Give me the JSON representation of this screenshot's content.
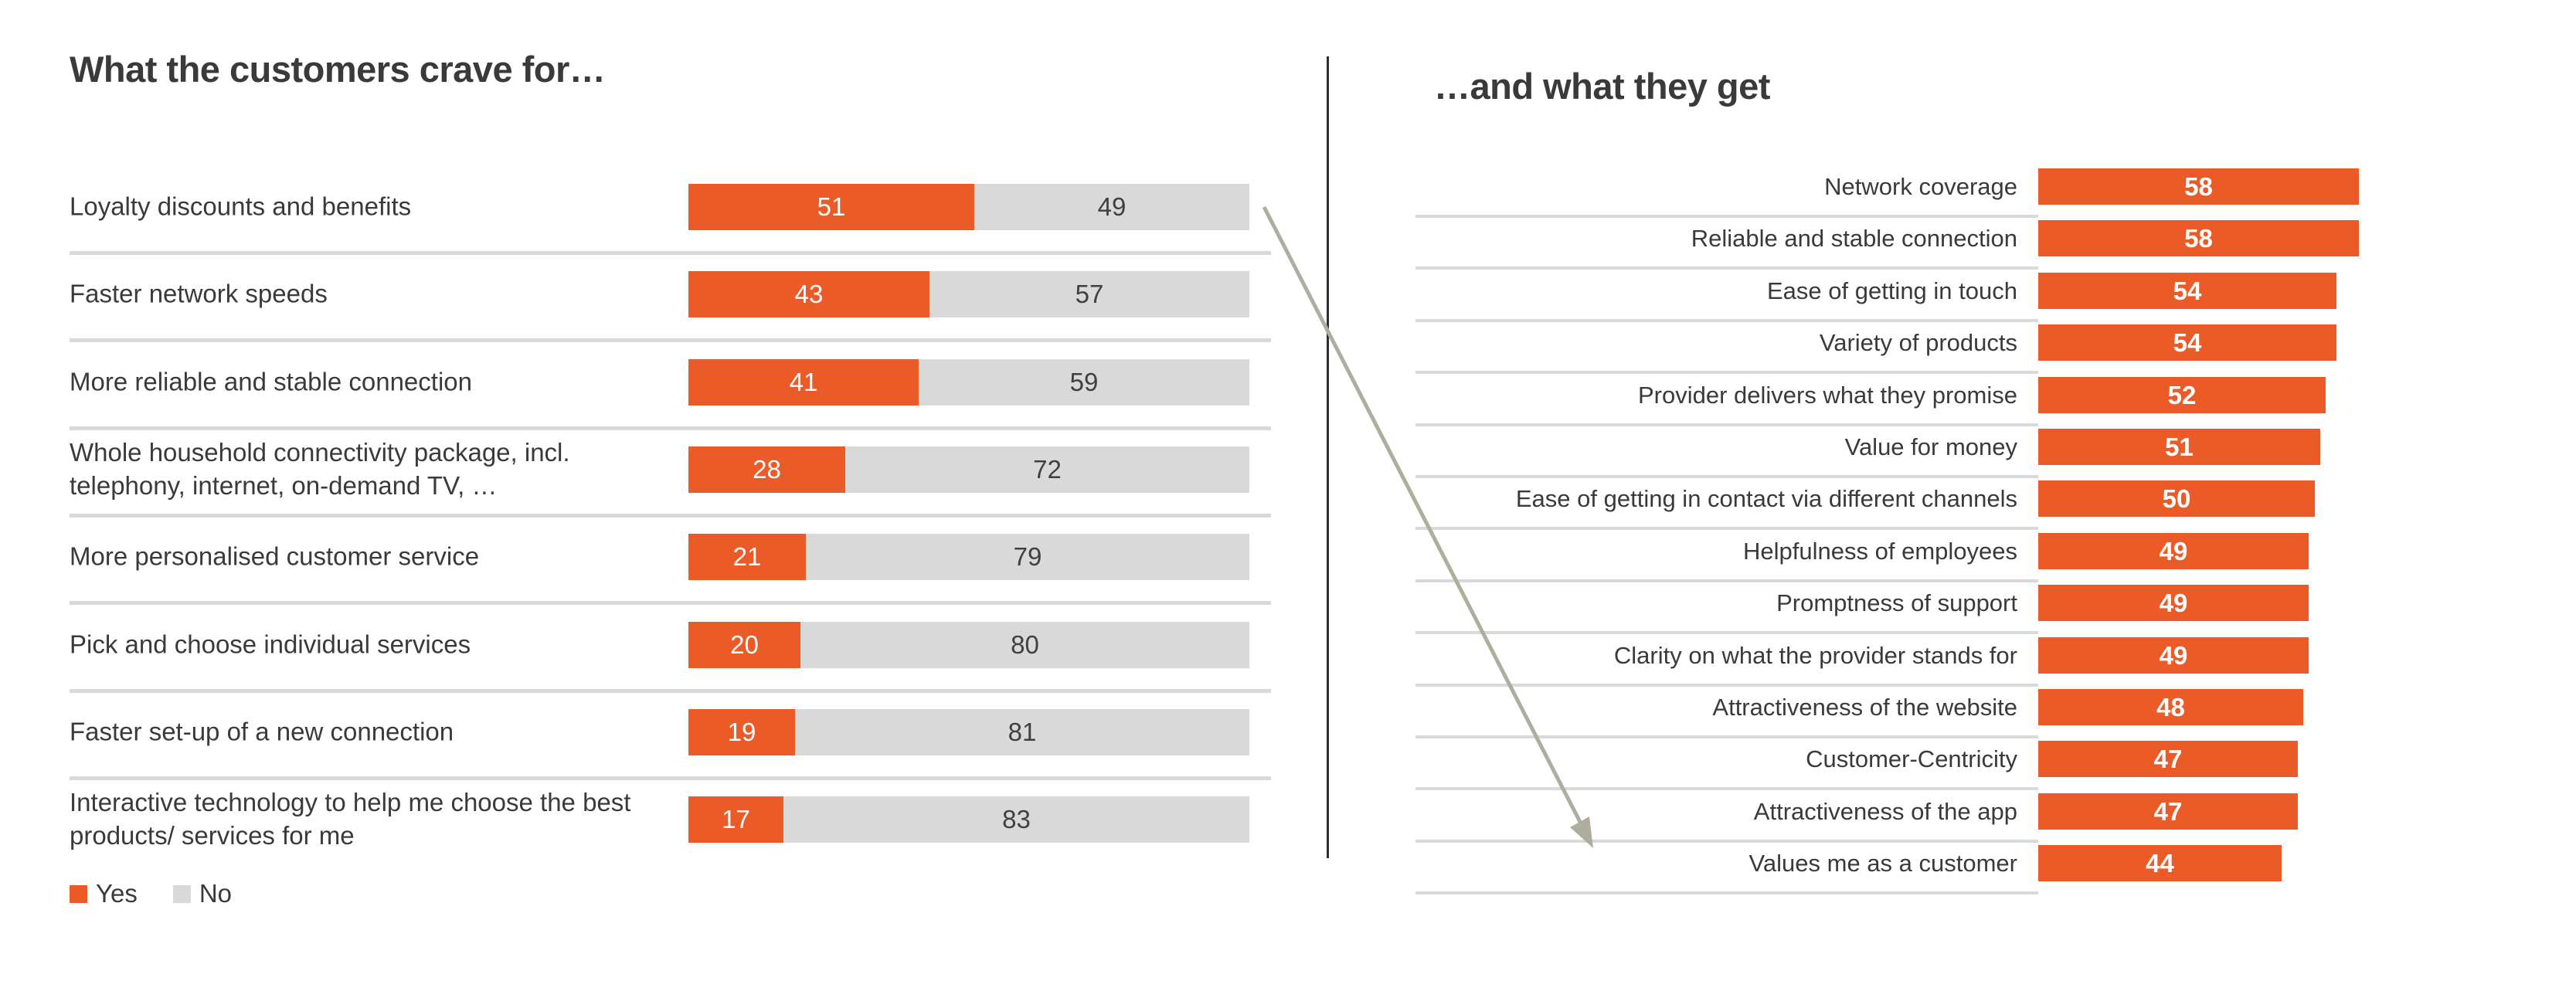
{
  "left_panel": {
    "title": "What the customers crave for…"
  },
  "right_panel": {
    "title": "…and what they get"
  },
  "legend": {
    "yes_label": "Yes",
    "no_label": "No"
  },
  "colors": {
    "orange": "#EA5B28",
    "gray_bar": "#D9D9D9",
    "text_dark": "#3A3A3A",
    "value_on_gray": "#404040",
    "separator": "#D9D9D9",
    "divider": "#2E2E2E",
    "arrow": "#AFAE9E"
  },
  "chart_data": [
    {
      "type": "bar",
      "subtype": "stacked-horizontal",
      "title": "What the customers crave for…",
      "xlim": [
        0,
        100
      ],
      "legend_position": "bottom-left",
      "categories": [
        "Loyalty discounts and benefits",
        "Faster network speeds",
        "More reliable and stable connection",
        "Whole household connectivity package, incl. telephony, internet, on-demand TV, …",
        "More personalised customer service",
        "Pick and choose individual services",
        "Faster set-up of a new connection",
        "Interactive technology to help me choose the best products/ services for me"
      ],
      "series": [
        {
          "name": "Yes",
          "color": "#EA5B28",
          "values": [
            51,
            43,
            41,
            28,
            21,
            20,
            19,
            17
          ]
        },
        {
          "name": "No",
          "color": "#D9D9D9",
          "values": [
            49,
            57,
            59,
            72,
            79,
            80,
            81,
            83
          ]
        }
      ]
    },
    {
      "type": "bar",
      "subtype": "horizontal",
      "title": "…and what they get",
      "xlim": [
        0,
        100
      ],
      "bar_color": "#EA5B28",
      "categories": [
        "Network coverage",
        "Reliable and stable connection",
        "Ease of getting in touch",
        "Variety of products",
        "Provider delivers what they promise",
        "Value for money",
        "Ease of getting in contact via different channels",
        "Helpfulness of employees",
        "Promptness of support",
        "Clarity on what the provider stands for",
        "Attractiveness of the website",
        "Customer-Centricity",
        "Attractiveness of the app",
        "Values me as a customer"
      ],
      "values": [
        58,
        58,
        54,
        54,
        52,
        51,
        50,
        49,
        49,
        49,
        48,
        47,
        47,
        44
      ]
    }
  ],
  "annotation_arrow": {
    "meaning": "links top craving (Loyalty discounts and benefits) to lowest delivered item (Values me as a customer)"
  }
}
